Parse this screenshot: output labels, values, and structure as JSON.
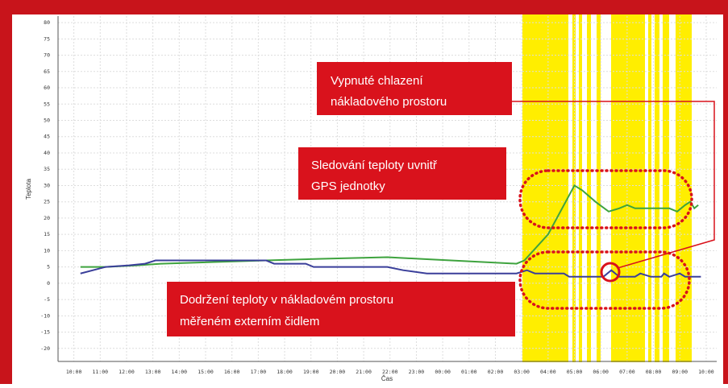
{
  "chart_data": {
    "type": "line",
    "xlabel": "Čas",
    "ylabel": "Teplota",
    "xlim": [
      -0.6,
      24.4
    ],
    "xticks": [
      {
        "value": 0,
        "label": "10:00"
      },
      {
        "value": 1,
        "label": "11:00"
      },
      {
        "value": 2,
        "label": "12:00"
      },
      {
        "value": 3,
        "label": "13:00"
      },
      {
        "value": 4,
        "label": "14:00"
      },
      {
        "value": 5,
        "label": "15:00"
      },
      {
        "value": 6,
        "label": "16:00"
      },
      {
        "value": 7,
        "label": "17:00"
      },
      {
        "value": 8,
        "label": "18:00"
      },
      {
        "value": 9,
        "label": "19:00"
      },
      {
        "value": 10,
        "label": "20:00"
      },
      {
        "value": 11,
        "label": "21:00"
      },
      {
        "value": 12,
        "label": "22:00"
      },
      {
        "value": 13,
        "label": "23:00"
      },
      {
        "value": 14,
        "label": "00:00"
      },
      {
        "value": 15,
        "label": "01:00"
      },
      {
        "value": 16,
        "label": "02:00"
      },
      {
        "value": 17,
        "label": "03:00"
      },
      {
        "value": 18,
        "label": "04:00"
      },
      {
        "value": 19,
        "label": "05:00"
      },
      {
        "value": 20,
        "label": "06:00"
      },
      {
        "value": 21,
        "label": "07:00"
      },
      {
        "value": 22,
        "label": "08:00"
      },
      {
        "value": 23,
        "label": "09:00"
      },
      {
        "value": 24,
        "label": "10:00"
      }
    ],
    "ylim": [
      -24,
      82
    ],
    "yticks": [
      -20,
      -15,
      -10,
      -5,
      0,
      5,
      10,
      15,
      20,
      25,
      30,
      35,
      40,
      45,
      50,
      55,
      60,
      65,
      70,
      75,
      80
    ],
    "grid": true,
    "series": [
      {
        "color": "#3ea33e",
        "x": [
          0.25,
          1.2,
          2.4,
          3.3,
          7.3,
          9.4,
          11.9,
          13.1,
          16.8,
          17.1,
          18.0,
          19.0,
          19.3,
          19.8,
          20.3,
          20.7,
          21.0,
          21.3,
          22.6,
          22.9,
          23.2,
          23.4,
          23.55,
          23.7
        ],
        "values": [
          5,
          5,
          5.5,
          6,
          7,
          7.5,
          8,
          7.5,
          6,
          7,
          15,
          30,
          28.5,
          25,
          22,
          23,
          24,
          23,
          23,
          22,
          24,
          25,
          23,
          24
        ]
      },
      {
        "color": "#3a3f9a",
        "x": [
          0.25,
          1.2,
          2.1,
          2.7,
          3.1,
          7.3,
          7.6,
          8.8,
          9.1,
          11.9,
          12.5,
          13.4,
          16.8,
          17.2,
          17.5,
          18.6,
          18.8,
          20.1,
          20.4,
          20.7,
          21.3,
          21.5,
          21.9,
          22.3,
          22.4,
          22.6,
          23.0,
          23.2,
          23.8
        ],
        "values": [
          3,
          5,
          5.5,
          6,
          7,
          7,
          6,
          6,
          5,
          5,
          4,
          3,
          3,
          4,
          3,
          3,
          2,
          2,
          4,
          2,
          2,
          3,
          2,
          2,
          3,
          2,
          3,
          2,
          2
        ]
      }
    ],
    "annotations": [
      {
        "lines": [
          "Vypnuté chlazení",
          "nákladového prostoru"
        ]
      },
      {
        "lines": [
          "Sledování teploty uvnitř",
          "GPS jednotky"
        ]
      },
      {
        "lines": [
          "Dodržení teploty v nákladovém prostoru",
          "měřeném externím čidlem"
        ]
      }
    ]
  }
}
